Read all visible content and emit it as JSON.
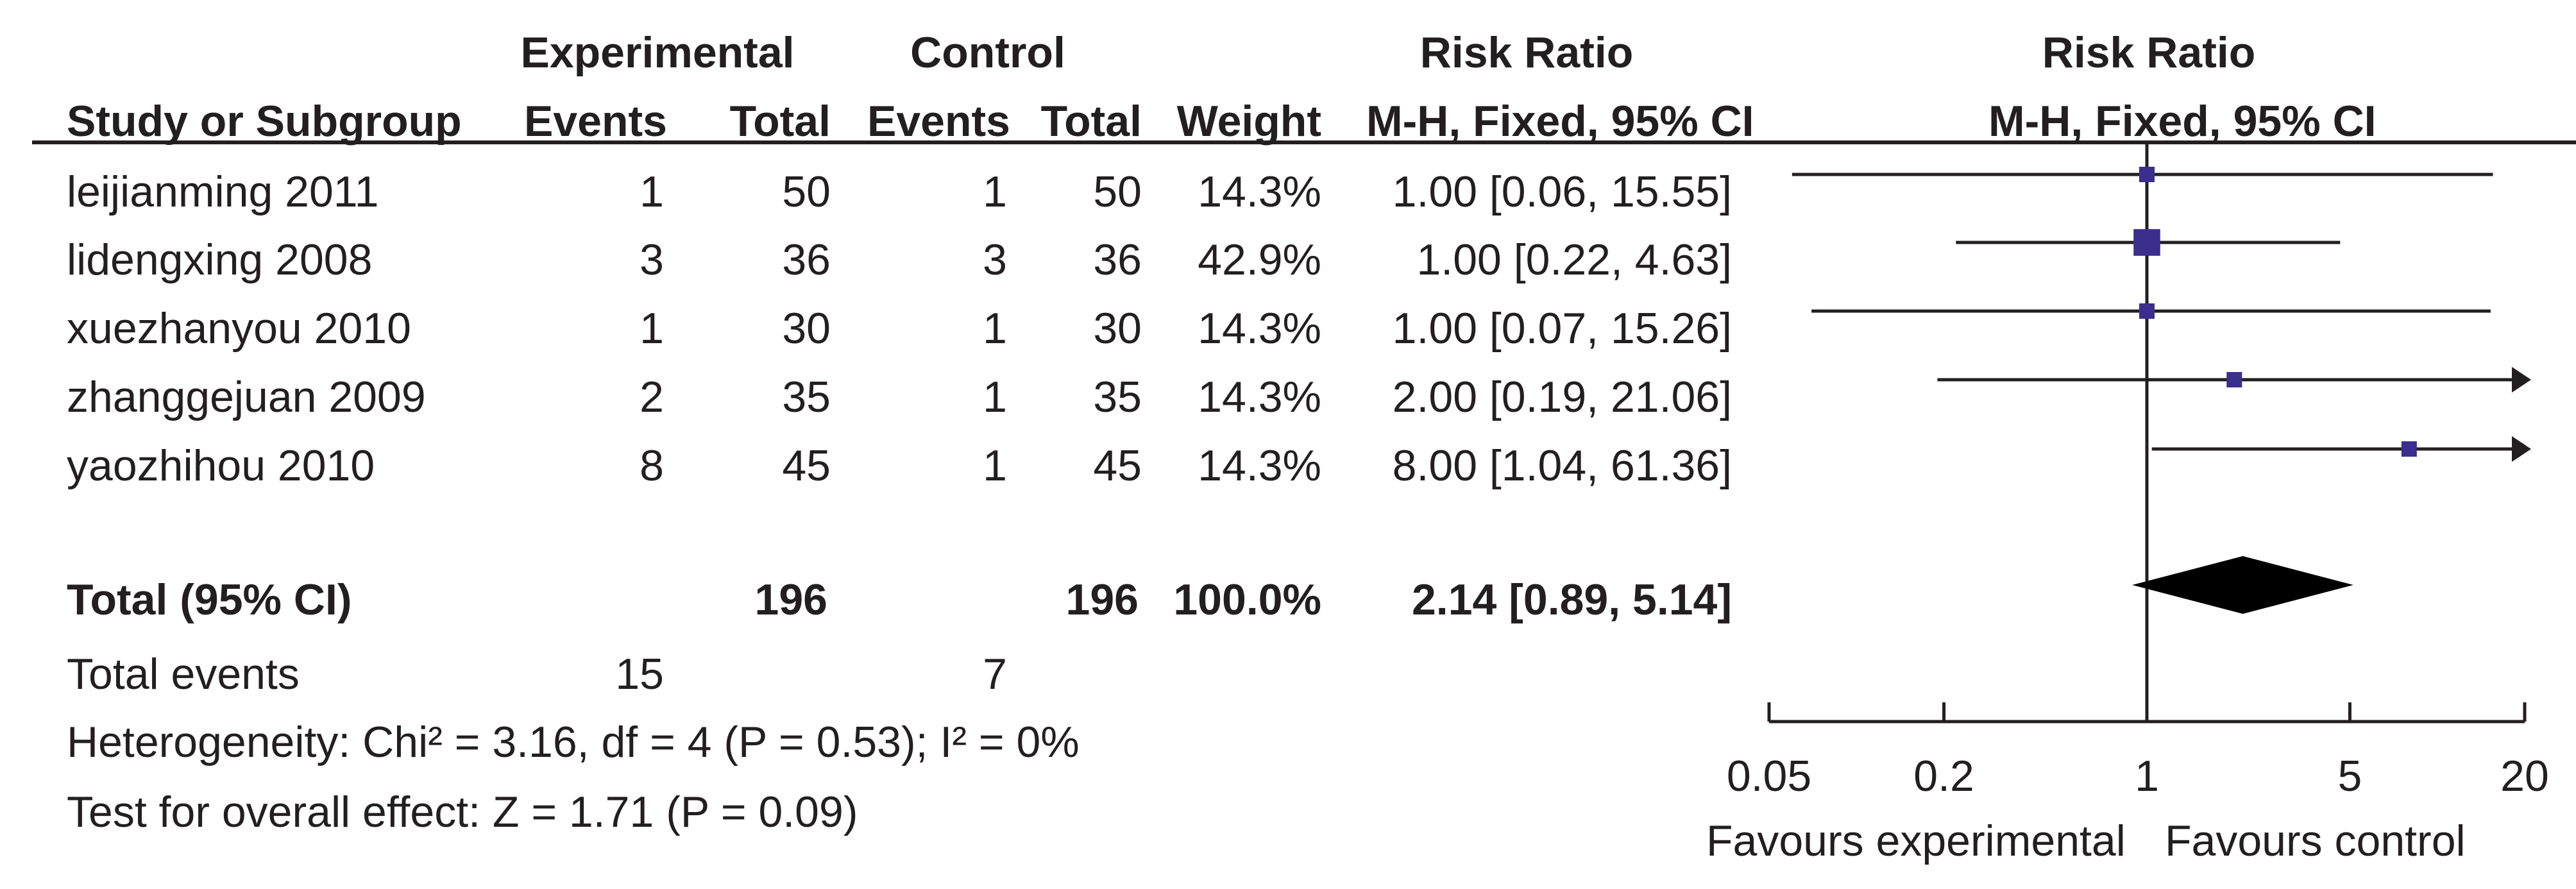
{
  "headers": {
    "experimental": "Experimental",
    "control": "Control",
    "risk_ratio_table": "Risk Ratio",
    "risk_ratio_plot": "Risk Ratio",
    "study": "Study or Subgroup",
    "events_exp": "Events",
    "total_exp": "Total",
    "events_ctl": "Events",
    "total_ctl": "Total",
    "weight": "Weight",
    "method_table": "M-H, Fixed, 95% CI",
    "method_plot": "M-H, Fixed, 95% CI"
  },
  "studies": [
    {
      "name": "leijianming 2011",
      "exp_events": "1",
      "exp_total": "50",
      "ctl_events": "1",
      "ctl_total": "50",
      "weight": "14.3%",
      "ci_text": "1.00 [0.06, 15.55]"
    },
    {
      "name": "lidengxing 2008",
      "exp_events": "3",
      "exp_total": "36",
      "ctl_events": "3",
      "ctl_total": "36",
      "weight": "42.9%",
      "ci_text": "1.00 [0.22, 4.63]"
    },
    {
      "name": "xuezhanyou 2010",
      "exp_events": "1",
      "exp_total": "30",
      "ctl_events": "1",
      "ctl_total": "30",
      "weight": "14.3%",
      "ci_text": "1.00 [0.07, 15.26]"
    },
    {
      "name": "zhanggejuan 2009",
      "exp_events": "2",
      "exp_total": "35",
      "ctl_events": "1",
      "ctl_total": "35",
      "weight": "14.3%",
      "ci_text": "2.00 [0.19, 21.06]"
    },
    {
      "name": "yaozhihou 2010",
      "exp_events": "8",
      "exp_total": "45",
      "ctl_events": "1",
      "ctl_total": "45",
      "weight": "14.3%",
      "ci_text": "8.00 [1.04, 61.36]"
    }
  ],
  "total": {
    "label": "Total (95% CI)",
    "exp_total": "196",
    "ctl_total": "196",
    "weight": "100.0%",
    "ci_text": "2.14 [0.89, 5.14]"
  },
  "total_events": {
    "label": "Total events",
    "exp": "15",
    "ctl": "7"
  },
  "heterogeneity": "Heterogeneity: Chi² = 3.16, df = 4 (P = 0.53); I² = 0%",
  "overall_effect": "Test for overall effect: Z = 1.71 (P = 0.09)",
  "favours_left": "Favours experimental",
  "favours_right": "Favours control",
  "chart_data": {
    "type": "forest",
    "x_scale": "log",
    "xlim": [
      0.05,
      20
    ],
    "xticks": [
      0.05,
      0.2,
      1,
      5,
      20
    ],
    "tick_labels": [
      "0.05",
      "0.2",
      "1",
      "5",
      "20"
    ],
    "reference_line": 1,
    "studies": [
      {
        "name": "leijianming 2011",
        "rr": 1.0,
        "lower": 0.06,
        "upper": 15.55,
        "weight": 14.3
      },
      {
        "name": "lidengxing 2008",
        "rr": 1.0,
        "lower": 0.22,
        "upper": 4.63,
        "weight": 42.9
      },
      {
        "name": "xuezhanyou 2010",
        "rr": 1.0,
        "lower": 0.07,
        "upper": 15.26,
        "weight": 14.3
      },
      {
        "name": "zhanggejuan 2009",
        "rr": 2.0,
        "lower": 0.19,
        "upper": 21.06,
        "weight": 14.3
      },
      {
        "name": "yaozhihou 2010",
        "rr": 8.0,
        "lower": 1.04,
        "upper": 61.36,
        "weight": 14.3
      }
    ],
    "pooled": {
      "rr": 2.14,
      "lower": 0.89,
      "upper": 5.14
    },
    "colors": {
      "marker": "#3b2e8c",
      "line": "#231f20",
      "diamond": "#000000"
    }
  }
}
